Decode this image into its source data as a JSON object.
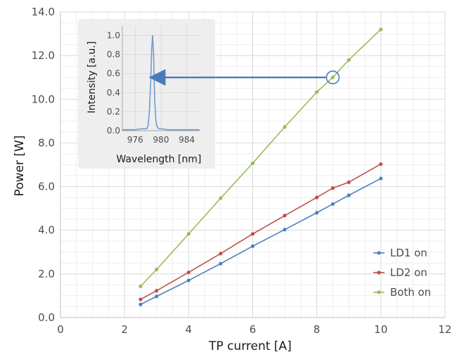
{
  "colors": {
    "ld1": "#4f81bd",
    "ld2": "#c0504d",
    "both": "#9bbb59",
    "arrow": "#4a7ab8",
    "grid_major": "#d9d9d9",
    "grid_minor": "#eeeeee",
    "inset_bg": "#eeeeee",
    "inset_spectrum": "#6f9bd1"
  },
  "chart_data": [
    {
      "type": "line",
      "xlabel": "TP current [A]",
      "ylabel": "Power [W]",
      "xlim": [
        0,
        12
      ],
      "ylim": [
        0,
        14
      ],
      "x_ticks": [
        "0",
        "2",
        "4",
        "6",
        "8",
        "10",
        "12"
      ],
      "y_ticks": [
        "0.0",
        "2.0",
        "4.0",
        "6.0",
        "8.0",
        "10.0",
        "12.0",
        "14.0"
      ],
      "grid": "major and minor",
      "legend_position": "bottom-right",
      "series": [
        {
          "name": "LD1 on",
          "color": "#4f81bd",
          "x": [
            2.5,
            3,
            4,
            5,
            6,
            7,
            8,
            8.5,
            9,
            10
          ],
          "y": [
            0.6,
            0.97,
            1.7,
            2.47,
            3.27,
            4.03,
            4.8,
            5.2,
            5.6,
            6.37
          ]
        },
        {
          "name": "LD2 on",
          "color": "#c0504d",
          "x": [
            2.5,
            3,
            4,
            5,
            6,
            7,
            8,
            8.5,
            9,
            10
          ],
          "y": [
            0.83,
            1.23,
            2.07,
            2.93,
            3.83,
            4.67,
            5.5,
            5.93,
            6.2,
            7.03
          ]
        },
        {
          "name": "Both on",
          "color": "#9bbb59",
          "x": [
            2.5,
            3,
            4,
            5,
            6,
            7,
            8,
            8.5,
            9,
            10
          ],
          "y": [
            1.43,
            2.2,
            3.83,
            5.47,
            7.07,
            8.73,
            10.33,
            11.0,
            11.8,
            13.2
          ]
        }
      ],
      "annotation": {
        "circle_at": [
          8.5,
          11.0
        ],
        "arrow_to_inset": true
      }
    },
    {
      "type": "line",
      "role": "inset",
      "xlabel": "Wavelength [nm]",
      "ylabel": "Intensity [a.u.]",
      "xlim": [
        974,
        986
      ],
      "ylim": [
        0,
        1.1
      ],
      "x_ticks": [
        "976",
        "980",
        "984"
      ],
      "y_ticks": [
        "0.0",
        "0.2",
        "0.4",
        "0.6",
        "0.8",
        "1.0"
      ],
      "series": [
        {
          "color": "#6f9bd1",
          "x": [
            974,
            976,
            977,
            977.8,
            978.0,
            978.2,
            978.4,
            978.55,
            978.7,
            978.85,
            978.95,
            979.05,
            979.2,
            979.35,
            979.5,
            979.7,
            980,
            981,
            982,
            983,
            984,
            985,
            986
          ],
          "y": [
            0.01,
            0.01,
            0.02,
            0.02,
            0.05,
            0.2,
            0.5,
            0.85,
            1.0,
            0.82,
            0.5,
            0.3,
            0.12,
            0.05,
            0.03,
            0.02,
            0.02,
            0.01,
            0.01,
            0.01,
            0.01,
            0.01,
            0.01
          ]
        }
      ]
    }
  ]
}
